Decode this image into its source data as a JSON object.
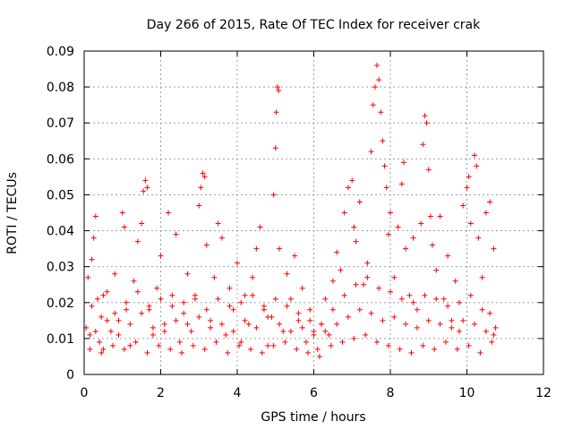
{
  "chart_data": {
    "type": "scatter",
    "title": "Day 266 of 2015, Rate Of TEC Index for receiver crak",
    "xlabel": "GPS time / hours",
    "ylabel": "ROTI / TECUs",
    "xlim": [
      0,
      12
    ],
    "ylim": [
      0,
      0.09
    ],
    "xticks": [
      "0",
      "2",
      "4",
      "6",
      "8",
      "10",
      "12"
    ],
    "yticks": [
      "0",
      "0.01",
      "0.02",
      "0.03",
      "0.04",
      "0.05",
      "0.06",
      "0.07",
      "0.08",
      "0.09"
    ],
    "marker": "+",
    "color": "#ff0000",
    "grid": true,
    "series": [
      {
        "name": "ROTI",
        "points": [
          [
            0.05,
            0.013
          ],
          [
            0.1,
            0.027
          ],
          [
            0.15,
            0.011
          ],
          [
            0.2,
            0.032
          ],
          [
            0.25,
            0.038
          ],
          [
            0.3,
            0.044
          ],
          [
            0.35,
            0.021
          ],
          [
            0.4,
            0.009
          ],
          [
            0.45,
            0.016
          ],
          [
            0.5,
            0.007
          ],
          [
            0.6,
            0.023
          ],
          [
            0.7,
            0.012
          ],
          [
            0.8,
            0.028
          ],
          [
            0.9,
            0.015
          ],
          [
            1.0,
            0.045
          ],
          [
            1.05,
            0.041
          ],
          [
            1.1,
            0.018
          ],
          [
            1.2,
            0.008
          ],
          [
            1.3,
            0.026
          ],
          [
            1.4,
            0.037
          ],
          [
            1.5,
            0.042
          ],
          [
            1.55,
            0.051
          ],
          [
            1.6,
            0.054
          ],
          [
            1.65,
            0.052
          ],
          [
            1.7,
            0.019
          ],
          [
            1.8,
            0.011
          ],
          [
            1.9,
            0.024
          ],
          [
            2.0,
            0.033
          ],
          [
            2.1,
            0.014
          ],
          [
            2.2,
            0.045
          ],
          [
            2.3,
            0.022
          ],
          [
            2.4,
            0.039
          ],
          [
            2.5,
            0.009
          ],
          [
            2.6,
            0.017
          ],
          [
            2.7,
            0.028
          ],
          [
            2.8,
            0.012
          ],
          [
            2.9,
            0.021
          ],
          [
            3.0,
            0.047
          ],
          [
            3.05,
            0.052
          ],
          [
            3.1,
            0.056
          ],
          [
            3.15,
            0.055
          ],
          [
            3.2,
            0.036
          ],
          [
            3.3,
            0.015
          ],
          [
            3.4,
            0.027
          ],
          [
            3.5,
            0.042
          ],
          [
            3.6,
            0.038
          ],
          [
            3.7,
            0.011
          ],
          [
            3.8,
            0.024
          ],
          [
            3.9,
            0.018
          ],
          [
            4.0,
            0.031
          ],
          [
            4.1,
            0.009
          ],
          [
            4.2,
            0.022
          ],
          [
            4.3,
            0.014
          ],
          [
            4.4,
            0.027
          ],
          [
            4.5,
            0.035
          ],
          [
            4.6,
            0.041
          ],
          [
            4.7,
            0.019
          ],
          [
            4.8,
            0.008
          ],
          [
            4.9,
            0.016
          ],
          [
            4.95,
            0.05
          ],
          [
            5.0,
            0.063
          ],
          [
            5.02,
            0.073
          ],
          [
            5.05,
            0.08
          ],
          [
            5.08,
            0.079
          ],
          [
            5.1,
            0.035
          ],
          [
            5.2,
            0.012
          ],
          [
            5.3,
            0.028
          ],
          [
            5.4,
            0.021
          ],
          [
            5.5,
            0.033
          ],
          [
            5.6,
            0.015
          ],
          [
            5.7,
            0.024
          ],
          [
            5.8,
            0.009
          ],
          [
            5.9,
            0.018
          ],
          [
            6.0,
            0.012
          ],
          [
            6.1,
            0.007
          ],
          [
            6.2,
            0.014
          ],
          [
            6.3,
            0.021
          ],
          [
            6.4,
            0.011
          ],
          [
            6.5,
            0.026
          ],
          [
            6.6,
            0.034
          ],
          [
            6.7,
            0.029
          ],
          [
            6.8,
            0.045
          ],
          [
            6.9,
            0.052
          ],
          [
            7.0,
            0.054
          ],
          [
            7.05,
            0.041
          ],
          [
            7.1,
            0.037
          ],
          [
            7.2,
            0.048
          ],
          [
            7.3,
            0.025
          ],
          [
            7.4,
            0.031
          ],
          [
            7.5,
            0.062
          ],
          [
            7.55,
            0.075
          ],
          [
            7.6,
            0.08
          ],
          [
            7.65,
            0.086
          ],
          [
            7.7,
            0.082
          ],
          [
            7.75,
            0.073
          ],
          [
            7.8,
            0.065
          ],
          [
            7.85,
            0.058
          ],
          [
            7.9,
            0.052
          ],
          [
            7.95,
            0.039
          ],
          [
            8.0,
            0.045
          ],
          [
            8.1,
            0.027
          ],
          [
            8.2,
            0.041
          ],
          [
            8.3,
            0.053
          ],
          [
            8.35,
            0.059
          ],
          [
            8.4,
            0.035
          ],
          [
            8.5,
            0.022
          ],
          [
            8.6,
            0.038
          ],
          [
            8.7,
            0.018
          ],
          [
            8.8,
            0.042
          ],
          [
            8.85,
            0.064
          ],
          [
            8.9,
            0.072
          ],
          [
            8.95,
            0.07
          ],
          [
            9.0,
            0.057
          ],
          [
            9.05,
            0.044
          ],
          [
            9.1,
            0.036
          ],
          [
            9.2,
            0.029
          ],
          [
            9.3,
            0.044
          ],
          [
            9.4,
            0.021
          ],
          [
            9.5,
            0.033
          ],
          [
            9.6,
            0.015
          ],
          [
            9.7,
            0.026
          ],
          [
            9.8,
            0.012
          ],
          [
            9.9,
            0.047
          ],
          [
            10.0,
            0.052
          ],
          [
            10.05,
            0.055
          ],
          [
            10.1,
            0.042
          ],
          [
            10.2,
            0.061
          ],
          [
            10.25,
            0.058
          ],
          [
            10.3,
            0.038
          ],
          [
            10.4,
            0.027
          ],
          [
            10.5,
            0.045
          ],
          [
            10.6,
            0.048
          ],
          [
            10.7,
            0.035
          ],
          [
            10.75,
            0.013
          ],
          [
            0.3,
            0.012
          ],
          [
            0.6,
            0.015
          ],
          [
            0.9,
            0.011
          ],
          [
            1.2,
            0.014
          ],
          [
            1.5,
            0.017
          ],
          [
            1.8,
            0.013
          ],
          [
            2.1,
            0.012
          ],
          [
            2.4,
            0.015
          ],
          [
            2.7,
            0.014
          ],
          [
            3.0,
            0.016
          ],
          [
            3.3,
            0.013
          ],
          [
            3.6,
            0.014
          ],
          [
            3.9,
            0.012
          ],
          [
            4.2,
            0.015
          ],
          [
            4.5,
            0.013
          ],
          [
            4.8,
            0.016
          ],
          [
            5.1,
            0.014
          ],
          [
            5.4,
            0.012
          ],
          [
            5.7,
            0.013
          ],
          [
            6.0,
            0.011
          ],
          [
            6.3,
            0.012
          ],
          [
            6.6,
            0.014
          ],
          [
            6.9,
            0.016
          ],
          [
            7.2,
            0.018
          ],
          [
            7.5,
            0.017
          ],
          [
            7.8,
            0.015
          ],
          [
            8.1,
            0.016
          ],
          [
            8.4,
            0.014
          ],
          [
            8.7,
            0.013
          ],
          [
            9.0,
            0.015
          ],
          [
            9.3,
            0.014
          ],
          [
            9.6,
            0.013
          ],
          [
            9.9,
            0.015
          ],
          [
            10.2,
            0.014
          ],
          [
            10.5,
            0.012
          ],
          [
            10.7,
            0.011
          ],
          [
            0.2,
            0.019
          ],
          [
            0.5,
            0.022
          ],
          [
            0.8,
            0.017
          ],
          [
            1.1,
            0.02
          ],
          [
            1.4,
            0.023
          ],
          [
            1.7,
            0.018
          ],
          [
            2.0,
            0.021
          ],
          [
            2.3,
            0.019
          ],
          [
            2.6,
            0.02
          ],
          [
            2.9,
            0.022
          ],
          [
            3.2,
            0.018
          ],
          [
            3.5,
            0.021
          ],
          [
            3.8,
            0.019
          ],
          [
            4.1,
            0.02
          ],
          [
            4.4,
            0.022
          ],
          [
            4.7,
            0.018
          ],
          [
            5.0,
            0.021
          ],
          [
            5.3,
            0.019
          ],
          [
            5.6,
            0.017
          ],
          [
            5.9,
            0.015
          ],
          [
            6.2,
            0.014
          ],
          [
            6.5,
            0.018
          ],
          [
            6.8,
            0.022
          ],
          [
            7.1,
            0.025
          ],
          [
            7.4,
            0.027
          ],
          [
            7.7,
            0.024
          ],
          [
            8.0,
            0.023
          ],
          [
            8.3,
            0.021
          ],
          [
            8.6,
            0.02
          ],
          [
            8.9,
            0.022
          ],
          [
            9.2,
            0.021
          ],
          [
            9.5,
            0.019
          ],
          [
            9.8,
            0.02
          ],
          [
            10.1,
            0.022
          ],
          [
            10.4,
            0.018
          ],
          [
            10.6,
            0.017
          ],
          [
            0.15,
            0.007
          ],
          [
            0.45,
            0.006
          ],
          [
            0.75,
            0.008
          ],
          [
            1.05,
            0.007
          ],
          [
            1.35,
            0.009
          ],
          [
            1.65,
            0.006
          ],
          [
            1.95,
            0.008
          ],
          [
            2.25,
            0.007
          ],
          [
            2.55,
            0.006
          ],
          [
            2.85,
            0.008
          ],
          [
            3.15,
            0.007
          ],
          [
            3.45,
            0.009
          ],
          [
            3.75,
            0.006
          ],
          [
            4.05,
            0.008
          ],
          [
            4.35,
            0.007
          ],
          [
            4.65,
            0.006
          ],
          [
            4.95,
            0.008
          ],
          [
            5.25,
            0.009
          ],
          [
            5.55,
            0.007
          ],
          [
            5.85,
            0.006
          ],
          [
            6.15,
            0.005
          ],
          [
            6.45,
            0.008
          ],
          [
            6.75,
            0.009
          ],
          [
            7.05,
            0.01
          ],
          [
            7.35,
            0.011
          ],
          [
            7.65,
            0.009
          ],
          [
            7.95,
            0.008
          ],
          [
            8.25,
            0.007
          ],
          [
            8.55,
            0.006
          ],
          [
            8.85,
            0.008
          ],
          [
            9.15,
            0.007
          ],
          [
            9.45,
            0.009
          ],
          [
            9.75,
            0.007
          ],
          [
            10.05,
            0.008
          ],
          [
            10.35,
            0.006
          ],
          [
            10.65,
            0.009
          ]
        ]
      }
    ]
  }
}
